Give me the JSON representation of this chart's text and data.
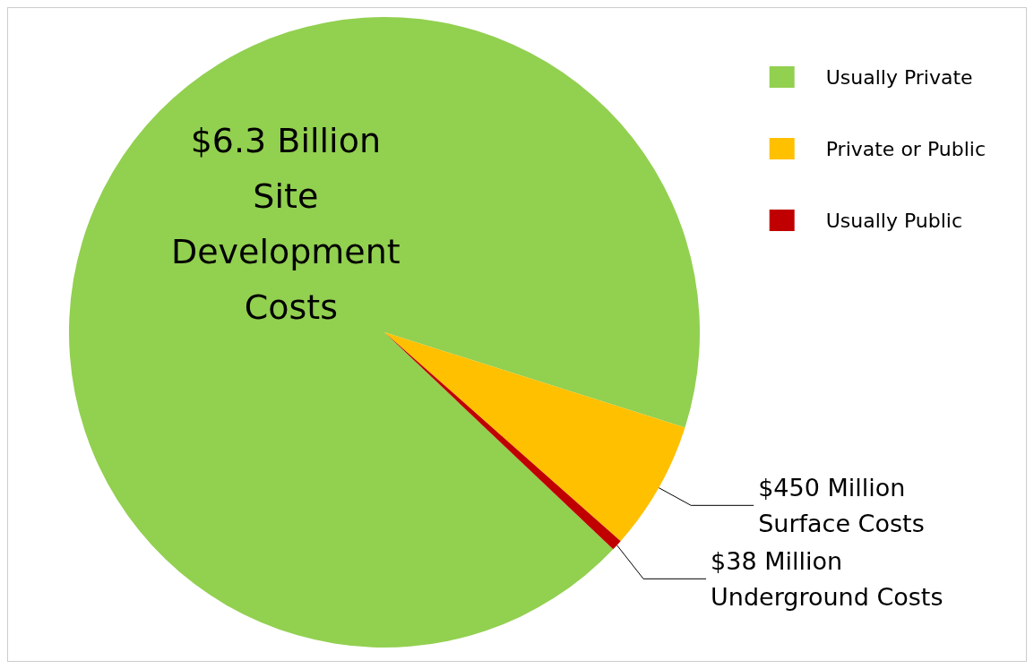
{
  "chart_data": {
    "type": "pie",
    "categories": [
      "Usually Private",
      "Private or Public",
      "Usually Public"
    ],
    "values": [
      92.81,
      6.63,
      0.56
    ],
    "colors": [
      "#92d050",
      "#ffc000",
      "#c00000"
    ],
    "annotations": [
      "$6.3 Billion Site Development Costs",
      "$450 Million Surface Costs",
      "$38 Million Underground Costs"
    ],
    "legend": "top right"
  }
}
